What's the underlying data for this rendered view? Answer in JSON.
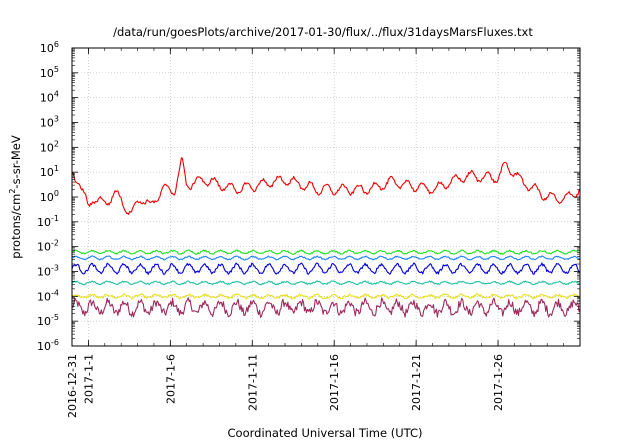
{
  "chart_data": {
    "type": "line",
    "title": "/data/run/goesPlots/archive/2017-01-30/flux/../flux/31daysMarsFluxes.txt",
    "xlabel": "Coordinated Universal Time (UTC)",
    "ylabel_parts": {
      "base": "protons/cm",
      "sup": "2",
      "rest": "-s-sr-MeV"
    },
    "y_scale": "log",
    "ylim": [
      1e-06,
      1000000.0
    ],
    "y_ticks": [
      {
        "value": -6,
        "base": "10",
        "exp": "-6"
      },
      {
        "value": -5,
        "base": "10",
        "exp": "-5"
      },
      {
        "value": -4,
        "base": "10",
        "exp": "-4"
      },
      {
        "value": -3,
        "base": "10",
        "exp": "-3"
      },
      {
        "value": -2,
        "base": "10",
        "exp": "-2"
      },
      {
        "value": -1,
        "base": "10",
        "exp": "-1"
      },
      {
        "value": 0,
        "base": "10",
        "exp": "0"
      },
      {
        "value": 1,
        "base": "10",
        "exp": "1"
      },
      {
        "value": 2,
        "base": "10",
        "exp": "2"
      },
      {
        "value": 3,
        "base": "10",
        "exp": "3"
      },
      {
        "value": 4,
        "base": "10",
        "exp": "4"
      },
      {
        "value": 5,
        "base": "10",
        "exp": "5"
      },
      {
        "value": 6,
        "base": "10",
        "exp": "6"
      }
    ],
    "x_range_days": [
      0,
      31
    ],
    "x_ticks": [
      {
        "day": 0,
        "label": "2016-12-31"
      },
      {
        "day": 1,
        "label": "2017-1-1"
      },
      {
        "day": 6,
        "label": "2017-1-6"
      },
      {
        "day": 11,
        "label": "2017-1-11"
      },
      {
        "day": 16,
        "label": "2017-1-16"
      },
      {
        "day": 21,
        "label": "2017-1-21"
      },
      {
        "day": 26,
        "label": "2017-1-26"
      }
    ],
    "grid": true,
    "legend": "none",
    "series": [
      {
        "color": "#9e2a5e",
        "level": 3.5e-05,
        "amp": 0.45,
        "noise": 0.35
      },
      {
        "color": "#e8e020",
        "level": 0.0001,
        "amp": 0.12,
        "noise": 0.1
      },
      {
        "color": "#20c0a0",
        "level": 0.00035,
        "amp": 0.1,
        "noise": 0.06
      },
      {
        "color": "#0000e0",
        "level": 0.0013,
        "amp": 0.35,
        "noise": 0.12
      },
      {
        "color": "#2080ff",
        "level": 0.0035,
        "amp": 0.12,
        "noise": 0.05
      },
      {
        "color": "#20e020",
        "level": 0.006,
        "amp": 0.12,
        "noise": 0.06
      },
      {
        "color": "#ee0000",
        "level": 2.5,
        "amp": 0.55,
        "noise": 0.12,
        "anchors": [
          [
            0.0,
            8
          ],
          [
            0.4,
            5
          ],
          [
            1.0,
            0.35
          ],
          [
            1.3,
            1
          ],
          [
            2.0,
            0.5
          ],
          [
            2.6,
            1.5
          ],
          [
            3.2,
            0.5
          ],
          [
            3.6,
            0.2
          ],
          [
            4.2,
            1
          ],
          [
            4.8,
            0.4
          ],
          [
            5.5,
            2
          ],
          [
            6.3,
            2
          ],
          [
            6.7,
            30
          ],
          [
            7.0,
            3
          ],
          [
            8.0,
            5
          ],
          [
            10.0,
            2
          ],
          [
            13.0,
            5
          ],
          [
            15.0,
            2
          ],
          [
            18.0,
            2
          ],
          [
            19.5,
            4
          ],
          [
            22.0,
            2
          ],
          [
            24.0,
            7
          ],
          [
            26.0,
            6
          ],
          [
            26.5,
            20
          ],
          [
            27.5,
            4
          ],
          [
            29.0,
            1
          ],
          [
            30.0,
            0.8
          ],
          [
            31.0,
            2
          ]
        ]
      }
    ]
  }
}
